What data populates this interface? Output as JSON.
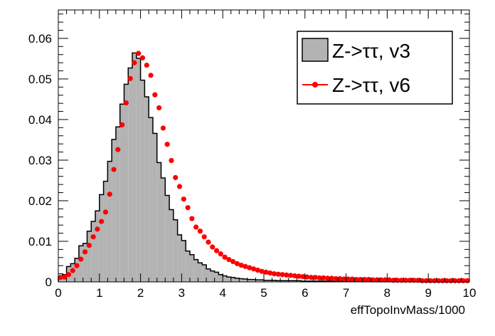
{
  "chart_data": {
    "type": "bar",
    "xlabel": "effTopoInvMass/1000",
    "ylabel": "",
    "xlim": [
      0,
      10
    ],
    "ylim": [
      0,
      0.067
    ],
    "x_ticks": [
      0,
      1,
      2,
      3,
      4,
      5,
      6,
      7,
      8,
      9,
      10
    ],
    "x_tick_labels": [
      "0",
      "1",
      "2",
      "3",
      "4",
      "5",
      "6",
      "7",
      "8",
      "9",
      "10"
    ],
    "y_ticks": [
      0,
      0.01,
      0.02,
      0.03,
      0.04,
      0.05,
      0.06
    ],
    "y_tick_labels": [
      "0",
      "0.01",
      "0.02",
      "0.03",
      "0.04",
      "0.05",
      "0.06"
    ],
    "bin_width": 0.1,
    "bin_edges_start": 0,
    "legend_position": "top-right",
    "grid": false,
    "series": [
      {
        "name": "Z->ττ, v3",
        "style": "filled-histogram",
        "fill": "#b3b3b3",
        "line": "#000000",
        "values": [
          0.0012,
          0.0018,
          0.0038,
          0.0045,
          0.0058,
          0.0089,
          0.0095,
          0.0125,
          0.0149,
          0.0175,
          0.0215,
          0.0248,
          0.0297,
          0.0351,
          0.0382,
          0.0438,
          0.0487,
          0.0527,
          0.0564,
          0.0551,
          0.0497,
          0.0456,
          0.0405,
          0.0366,
          0.0294,
          0.0256,
          0.0213,
          0.0178,
          0.0153,
          0.0116,
          0.0102,
          0.0076,
          0.0067,
          0.0055,
          0.0047,
          0.0042,
          0.0032,
          0.0027,
          0.0024,
          0.0018,
          0.0015,
          0.0012,
          0.0011,
          0.0009,
          0.0008,
          0.0007,
          0.0006,
          0.0006,
          0.0005,
          0.0005,
          0.0004,
          0.0004,
          0.0004,
          0.0003,
          0.0003,
          0.0003,
          0.0003,
          0.0003,
          0.0003,
          0.0002,
          0.0002,
          0.0002,
          0.0002,
          0.0002,
          0.0002,
          0.0002,
          0.0002,
          0.0002,
          0.0002,
          0.0002,
          0.0002,
          0.0002,
          0.0002,
          0.0002,
          0.0002,
          0.0002,
          0.0002,
          0.0002,
          0.0002,
          0.0002,
          0.0002,
          0.0002,
          0.0002,
          0.0002,
          0.0002,
          0.0002,
          0.0002,
          0.0002,
          0.0002,
          0.0002,
          0.0002,
          0.0002,
          0.0002,
          0.0002,
          0.0002,
          0.0002,
          0.0002,
          0.0002,
          0.0002,
          0.0002
        ]
      },
      {
        "name": "Z->ττ, v6",
        "style": "points-line",
        "color": "#ff0000",
        "values": [
          0.0011,
          0.0012,
          0.0018,
          0.0028,
          0.004,
          0.0056,
          0.0074,
          0.009,
          0.0111,
          0.013,
          0.0149,
          0.0172,
          0.0216,
          0.0277,
          0.0326,
          0.0387,
          0.0441,
          0.0501,
          0.054,
          0.0563,
          0.0552,
          0.0534,
          0.0509,
          0.0461,
          0.0429,
          0.0379,
          0.0339,
          0.0299,
          0.0257,
          0.0235,
          0.0204,
          0.0183,
          0.0156,
          0.0135,
          0.0125,
          0.0111,
          0.0098,
          0.0086,
          0.0077,
          0.0069,
          0.0061,
          0.0055,
          0.005,
          0.0045,
          0.0041,
          0.0038,
          0.0035,
          0.0032,
          0.0029,
          0.0026,
          0.0024,
          0.0022,
          0.002,
          0.0019,
          0.0018,
          0.0017,
          0.0016,
          0.0015,
          0.0014,
          0.0013,
          0.0012,
          0.0011,
          0.0011,
          0.001,
          0.001,
          0.0009,
          0.0009,
          0.0008,
          0.0008,
          0.0007,
          0.0007,
          0.0007,
          0.0006,
          0.0006,
          0.0006,
          0.0006,
          0.0005,
          0.0005,
          0.0005,
          0.0005,
          0.0005,
          0.0004,
          0.0004,
          0.0004,
          0.0004,
          0.0004,
          0.0004,
          0.0004,
          0.0003,
          0.0003,
          0.0003,
          0.0003,
          0.0003,
          0.0003,
          0.0003,
          0.0003,
          0.0003,
          0.0003,
          0.0003,
          0.0003
        ]
      }
    ]
  }
}
